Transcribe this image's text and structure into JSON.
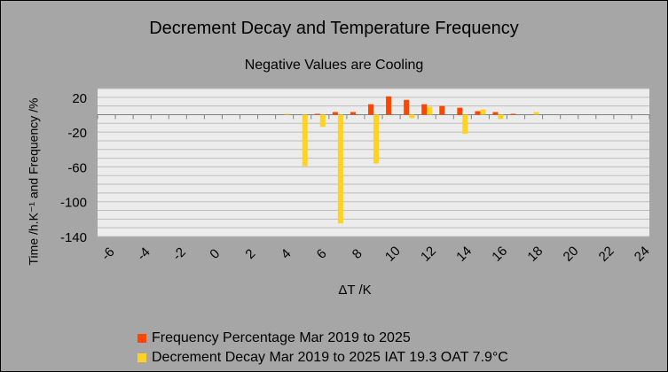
{
  "chart_data": {
    "type": "bar",
    "title": "Decrement Decay and Temperature Frequency",
    "subtitle": "Negative Values are Cooling",
    "xlabel": "ΔT /K",
    "ylabel": "Time /h.K⁻¹ and Frequency /%",
    "ylim": [
      -140,
      30
    ],
    "yticks": [
      20,
      -20,
      -60,
      -100,
      -140
    ],
    "xtick_labels": [
      "-6",
      "-4",
      "-2",
      "0",
      "2",
      "4",
      "6",
      "8",
      "10",
      "12",
      "14",
      "16",
      "18",
      "20",
      "22",
      "24"
    ],
    "grid": true,
    "legend_position": "bottom",
    "categories": [
      -6,
      -5,
      -4,
      -3,
      -2,
      -1,
      0,
      1,
      2,
      3,
      4,
      5,
      6,
      7,
      8,
      9,
      10,
      11,
      12,
      13,
      14,
      15,
      16,
      17,
      18,
      19,
      20,
      21,
      22,
      23,
      24
    ],
    "series": [
      {
        "name": "Frequency Percentage Mar 2019 to 2025",
        "color": "#ff4500",
        "values": [
          0,
          0,
          0,
          0,
          0,
          0,
          0,
          0,
          0,
          0,
          0,
          0,
          1,
          3,
          3,
          12,
          21,
          17,
          12,
          10,
          8,
          4,
          3,
          1,
          0,
          0,
          0,
          0,
          0,
          0,
          0
        ]
      },
      {
        "name": "Decrement Decay Mar 2019 to 2025 IAT 19.3 OAT 7.9°C",
        "color": "#ffd320",
        "values": [
          0,
          0,
          0,
          0,
          0,
          0,
          0,
          0,
          0,
          0,
          1,
          -59,
          -14,
          -125,
          0,
          -56,
          0,
          -4,
          9,
          0,
          -22,
          6,
          -5,
          0,
          3,
          0,
          0,
          0,
          0,
          0,
          0
        ]
      }
    ]
  }
}
